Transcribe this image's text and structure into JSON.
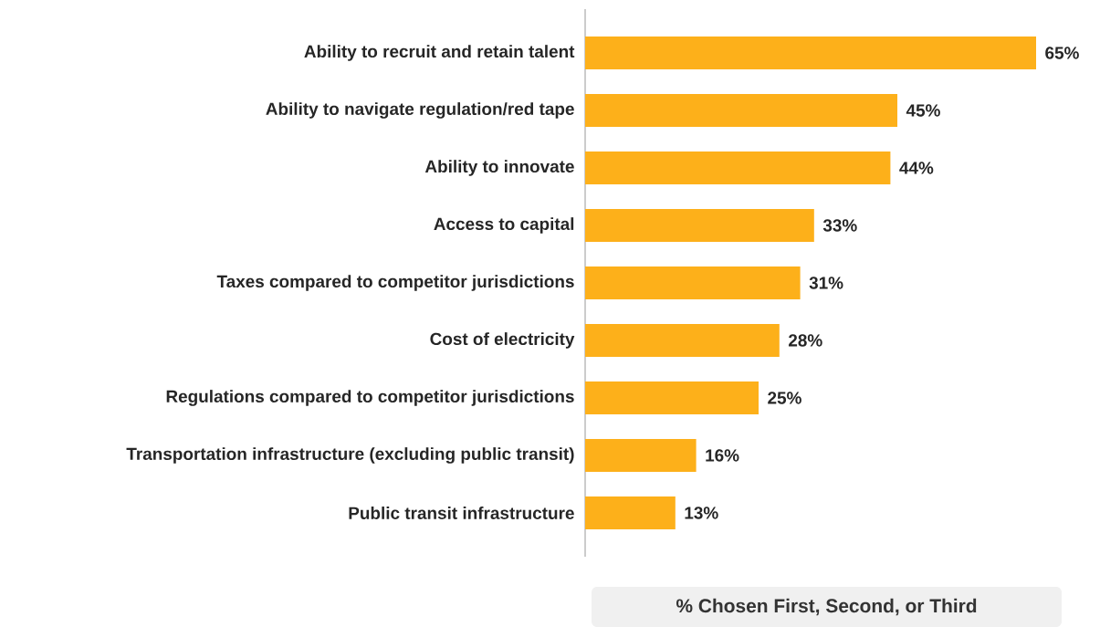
{
  "chart_data": {
    "type": "bar",
    "orientation": "horizontal",
    "categories": [
      "Ability to recruit and retain talent",
      "Ability to navigate regulation/red tape",
      "Ability to innovate",
      "Access to capital",
      "Taxes compared to competitor jurisdictions",
      "Cost of electricity",
      "Regulations compared to competitor jurisdictions",
      "Transportation infrastructure (excluding public transit)",
      "Public transit infrastructure"
    ],
    "values": [
      65,
      45,
      44,
      33,
      31,
      28,
      25,
      16,
      13
    ],
    "value_labels": [
      "65%",
      "45%",
      "44%",
      "33%",
      "31%",
      "28%",
      "25%",
      "16%",
      "13%"
    ],
    "color": "#fdb01a",
    "xlabel": "% Chosen First, Second, or Third"
  }
}
